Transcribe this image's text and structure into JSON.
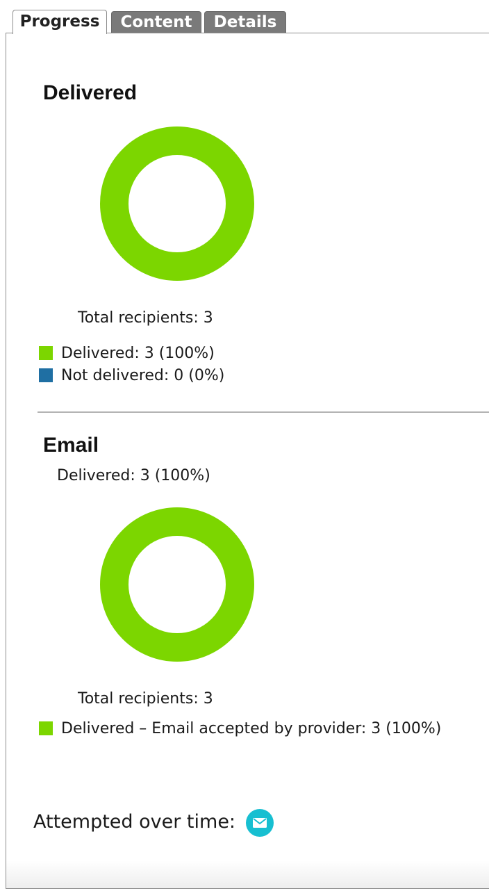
{
  "tabs": [
    {
      "label": "Progress",
      "active": true
    },
    {
      "label": "Content",
      "active": false
    },
    {
      "label": "Details",
      "active": false
    }
  ],
  "delivered_section": {
    "title": "Delivered",
    "total_label": "Total recipients: 3",
    "legend": [
      {
        "text": "Delivered: 3 (100%)",
        "color": "#7cd600"
      },
      {
        "text": "Not delivered: 0 (0%)",
        "color": "#1f6fa3"
      }
    ]
  },
  "email_section": {
    "title": "Email",
    "summary": "Delivered: 3 (100%)",
    "total_label": "Total recipients: 3",
    "legend": [
      {
        "text": "Delivered – Email accepted by provider: 3 (100%)",
        "color": "#7cd600"
      }
    ]
  },
  "attempted": {
    "label": "Attempted over time:",
    "icon": "mail-icon",
    "icon_color": "#17bfd1"
  },
  "donut_chart_data": [
    {
      "type": "pie",
      "categories": [
        "Delivered",
        "Not delivered"
      ],
      "values": [
        3,
        0
      ]
    },
    {
      "type": "pie",
      "categories": [
        "Delivered – Email accepted by provider"
      ],
      "values": [
        3
      ]
    }
  ]
}
